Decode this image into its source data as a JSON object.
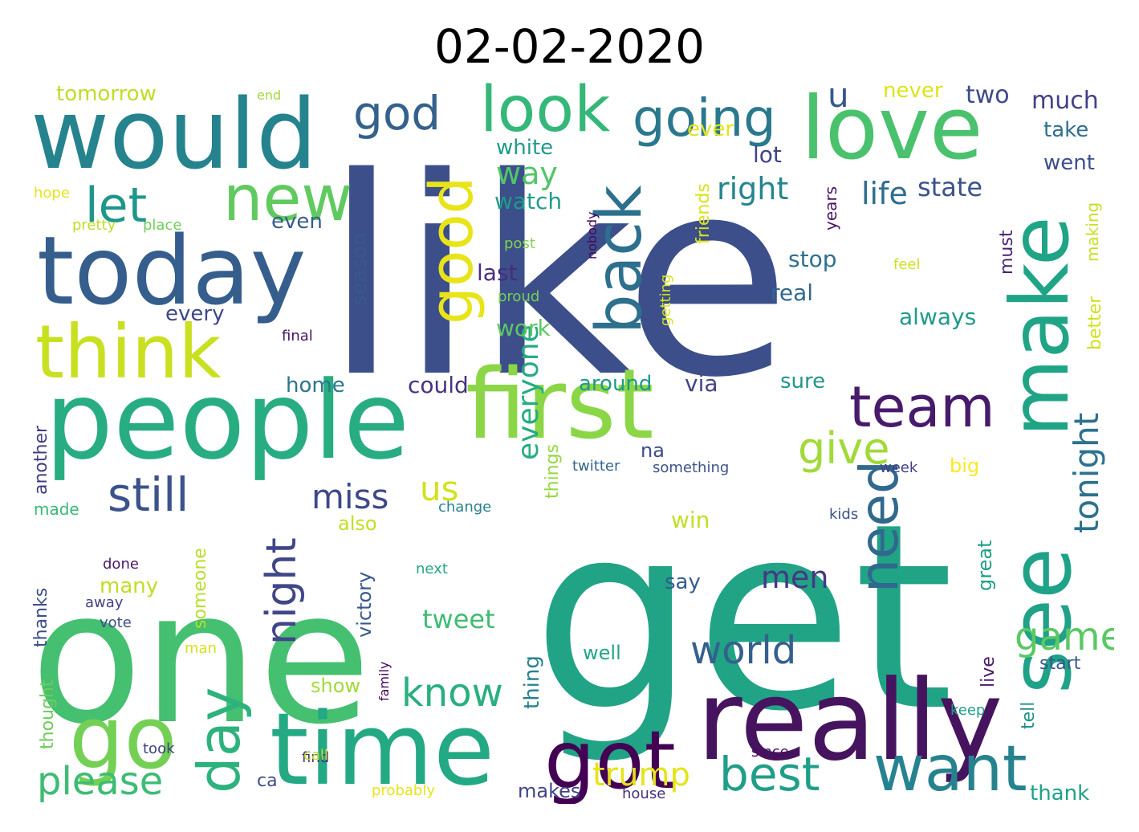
{
  "title": "02-02-2020",
  "words": [
    {
      "text": "like",
      "color": "#3c4f8a"
    },
    {
      "text": "get",
      "color": "#21a386"
    },
    {
      "text": "one",
      "color": "#45bf70"
    },
    {
      "text": "people",
      "color": "#27ad81"
    },
    {
      "text": "really",
      "color": "#46145e"
    },
    {
      "text": "time",
      "color": "#23a983"
    },
    {
      "text": "would",
      "color": "#25838e"
    },
    {
      "text": "today",
      "color": "#355e8d"
    },
    {
      "text": "love",
      "color": "#4ac16d"
    },
    {
      "text": "first",
      "color": "#8bd646"
    },
    {
      "text": "see",
      "color": "#1fa287"
    },
    {
      "text": "go",
      "color": "#74d055"
    },
    {
      "text": "make",
      "color": "#20a486"
    },
    {
      "text": "think",
      "color": "#c8e020"
    },
    {
      "text": "got",
      "color": "#440154"
    },
    {
      "text": "back",
      "color": "#2d708e"
    },
    {
      "text": "new",
      "color": "#60ca60"
    },
    {
      "text": "want",
      "color": "#26828e"
    },
    {
      "text": "look",
      "color": "#35b779"
    },
    {
      "text": "good",
      "color": "#e8e419"
    },
    {
      "text": "day",
      "color": "#2db27d"
    },
    {
      "text": "team",
      "color": "#481a6c"
    },
    {
      "text": "going",
      "color": "#2a788e"
    },
    {
      "text": "need",
      "color": "#31688e"
    },
    {
      "text": "let",
      "color": "#1f968b"
    },
    {
      "text": "god",
      "color": "#34618d"
    },
    {
      "text": "still",
      "color": "#3b528b"
    },
    {
      "text": "night",
      "color": "#404688"
    },
    {
      "text": "best",
      "color": "#1f9e89"
    },
    {
      "text": "give",
      "color": "#a0da39"
    },
    {
      "text": "please",
      "color": "#3dbc74"
    },
    {
      "text": "know",
      "color": "#29af7f"
    },
    {
      "text": "world",
      "color": "#355f8d"
    },
    {
      "text": "game",
      "color": "#5ac864"
    },
    {
      "text": "tonight",
      "color": "#2c728e"
    },
    {
      "text": "miss",
      "color": "#3e4989"
    },
    {
      "text": "us",
      "color": "#d2e21b"
    },
    {
      "text": "trump",
      "color": "#e5e419"
    },
    {
      "text": "u",
      "color": "#39568c"
    },
    {
      "text": "right",
      "color": "#24868e"
    },
    {
      "text": "life",
      "color": "#2e6e8e"
    },
    {
      "text": "way",
      "color": "#52c569"
    },
    {
      "text": "men",
      "color": "#443983"
    },
    {
      "text": "everyone",
      "color": "#25ac82"
    },
    {
      "text": "state",
      "color": "#3b528b"
    },
    {
      "text": "tweet",
      "color": "#3fbc73"
    },
    {
      "text": "much",
      "color": "#424186"
    },
    {
      "text": "two",
      "color": "#3e4a89"
    },
    {
      "text": "never",
      "color": "#dde318"
    },
    {
      "text": "tomorrow",
      "color": "#bddf26"
    },
    {
      "text": "ever",
      "color": "#e2e418"
    },
    {
      "text": "white",
      "color": "#1f9a8a"
    },
    {
      "text": "watch",
      "color": "#1e9c89"
    },
    {
      "text": "lot",
      "color": "#414487"
    },
    {
      "text": "even",
      "color": "#365c8d"
    },
    {
      "text": "season",
      "color": "#38598c"
    },
    {
      "text": "last",
      "color": "#472d7b"
    },
    {
      "text": "every",
      "color": "#3f4788"
    },
    {
      "text": "work",
      "color": "#5cc863"
    },
    {
      "text": "could",
      "color": "#46337e"
    },
    {
      "text": "home",
      "color": "#2a768e"
    },
    {
      "text": "around",
      "color": "#1f988b"
    },
    {
      "text": "via",
      "color": "#414487"
    },
    {
      "text": "real",
      "color": "#31688e"
    },
    {
      "text": "always",
      "color": "#1f9a8a"
    },
    {
      "text": "stop",
      "color": "#2c718e"
    },
    {
      "text": "sure",
      "color": "#1f968b"
    },
    {
      "text": "years",
      "color": "#471365"
    },
    {
      "text": "must",
      "color": "#482475"
    },
    {
      "text": "friends",
      "color": "#dae319"
    },
    {
      "text": "getting",
      "color": "#d8e219"
    },
    {
      "text": "take",
      "color": "#2e6e8e"
    },
    {
      "text": "went",
      "color": "#3d4e8a"
    },
    {
      "text": "making",
      "color": "#c5e021"
    },
    {
      "text": "better",
      "color": "#d0e11c"
    },
    {
      "text": "feel",
      "color": "#cde11d"
    },
    {
      "text": "hope",
      "color": "#e7e419"
    },
    {
      "text": "pretty",
      "color": "#bddf26"
    },
    {
      "text": "place",
      "color": "#6ece58"
    },
    {
      "text": "post",
      "color": "#7fd34e"
    },
    {
      "text": "proud",
      "color": "#75d054"
    },
    {
      "text": "nobody",
      "color": "#46085c"
    },
    {
      "text": "end",
      "color": "#9dd93b"
    },
    {
      "text": "final",
      "color": "#481769"
    },
    {
      "text": "another",
      "color": "#433e85"
    },
    {
      "text": "made",
      "color": "#38b977"
    },
    {
      "text": "thanks",
      "color": "#3d4d8a"
    },
    {
      "text": "thought",
      "color": "#6ccd5a"
    },
    {
      "text": "someone",
      "color": "#b8de29"
    },
    {
      "text": "many",
      "color": "#bddf26"
    },
    {
      "text": "also",
      "color": "#c2df23"
    },
    {
      "text": "victory",
      "color": "#37598c"
    },
    {
      "text": "show",
      "color": "#a2da37"
    },
    {
      "text": "family",
      "color": "#46085c"
    },
    {
      "text": "na",
      "color": "#3e4c8a"
    },
    {
      "text": "things",
      "color": "#95d840"
    },
    {
      "text": "thing",
      "color": "#26818e"
    },
    {
      "text": "twitter",
      "color": "#33638d"
    },
    {
      "text": "something",
      "color": "#3b528b"
    },
    {
      "text": "change",
      "color": "#26818e"
    },
    {
      "text": "win",
      "color": "#c2df23"
    },
    {
      "text": "say",
      "color": "#365c8d"
    },
    {
      "text": "well",
      "color": "#22a785"
    },
    {
      "text": "big",
      "color": "#fde725"
    },
    {
      "text": "great",
      "color": "#1f9f88"
    },
    {
      "text": "live",
      "color": "#48186a"
    },
    {
      "text": "tell",
      "color": "#21918c"
    },
    {
      "text": "start",
      "color": "#39568c"
    },
    {
      "text": "keep",
      "color": "#1f9e89"
    },
    {
      "text": "thank",
      "color": "#1fa188"
    },
    {
      "text": "week",
      "color": "#424086"
    },
    {
      "text": "kids",
      "color": "#3b518b"
    },
    {
      "text": "done",
      "color": "#481668"
    },
    {
      "text": "next",
      "color": "#22a884"
    },
    {
      "text": "away",
      "color": "#424186"
    },
    {
      "text": "vote",
      "color": "#3d4e8a"
    },
    {
      "text": "man",
      "color": "#d5e21a"
    },
    {
      "text": "took",
      "color": "#424086"
    },
    {
      "text": "find",
      "color": "#46327e"
    },
    {
      "text": "call",
      "color": "#bddf26"
    },
    {
      "text": "since",
      "color": "#470d60"
    },
    {
      "text": "ca",
      "color": "#3d4d8a"
    },
    {
      "text": "makes",
      "color": "#414487"
    },
    {
      "text": "house",
      "color": "#472f7d"
    },
    {
      "text": "probably",
      "color": "#e7e419"
    }
  ]
}
